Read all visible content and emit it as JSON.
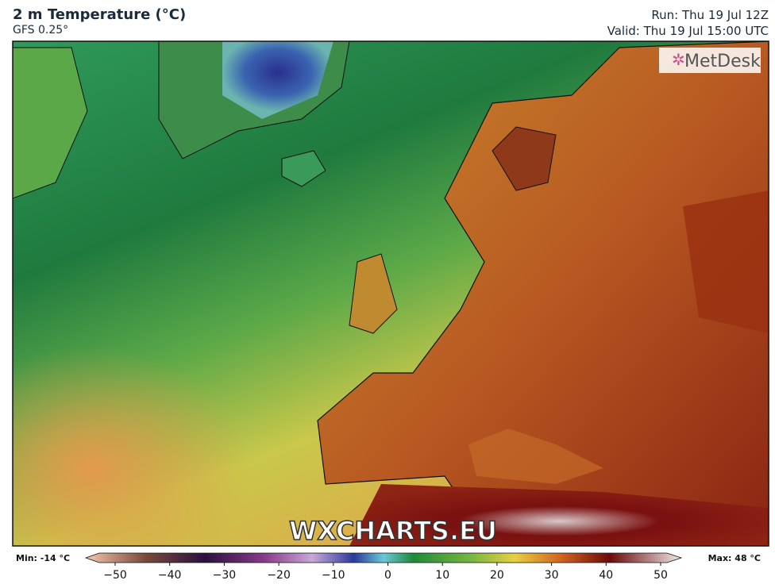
{
  "header": {
    "title": "2 m Temperature (°C)",
    "subtitle": "GFS 0.25°",
    "run": "Run: Thu 19 Jul 12Z",
    "valid": "Valid: Thu 19 Jul 15:00 UTC"
  },
  "map": {
    "logo": "MetDesk",
    "watermark": "WXCHARTS.EU"
  },
  "legend": {
    "min_label": "Min: -14 °C",
    "max_label": "Max: 48 °C",
    "ticks": [
      {
        "value": -50,
        "label": "−50"
      },
      {
        "value": -40,
        "label": "−40"
      },
      {
        "value": -30,
        "label": "−30"
      },
      {
        "value": -20,
        "label": "−20"
      },
      {
        "value": -10,
        "label": "−10"
      },
      0,
      10,
      20,
      30,
      40,
      50
    ]
  }
}
